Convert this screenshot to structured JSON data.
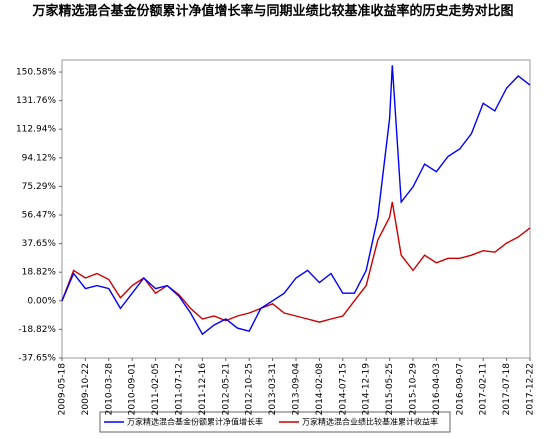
{
  "chart_data": {
    "type": "line",
    "title": "万家精选混合基金份额累计净值增长率与同期业绩比较基准收益率的历史走势对比图",
    "x": [
      "2009-05-18",
      "2009-08-04",
      "2009-10-22",
      "2010-01-08",
      "2010-03-28",
      "2010-06-14",
      "2010-09-01",
      "2010-11-18",
      "2011-02-05",
      "2011-04-24",
      "2011-07-12",
      "2011-09-28",
      "2011-12-16",
      "2012-03-03",
      "2012-05-21",
      "2012-08-07",
      "2012-10-25",
      "2013-01-11",
      "2013-03-31",
      "2013-06-17",
      "2013-09-04",
      "2013-11-21",
      "2014-02-08",
      "2014-04-27",
      "2014-07-15",
      "2014-10-01",
      "2014-12-19",
      "2015-03-07",
      "2015-05-25",
      "2015-06-12",
      "2015-08-11",
      "2015-10-29",
      "2016-01-15",
      "2016-04-03",
      "2016-06-20",
      "2016-09-07",
      "2016-11-24",
      "2017-02-11",
      "2017-04-30",
      "2017-07-18",
      "2017-10-04",
      "2017-12-22"
    ],
    "series": [
      {
        "name": "万家精选混合基金份额累计净值增长率",
        "color": "#0000ff",
        "values": [
          0,
          18,
          8,
          10,
          8,
          -5,
          5,
          15,
          8,
          10,
          3,
          -8,
          -22,
          -16,
          -12,
          -18,
          -20,
          -5,
          0,
          5,
          15,
          20,
          12,
          18,
          5,
          5,
          20,
          55,
          120,
          155,
          65,
          75,
          90,
          85,
          95,
          100,
          110,
          130,
          125,
          140,
          148,
          142
        ]
      },
      {
        "name": "万家精选混合业绩比较基准累计收益率",
        "color": "#cc0000",
        "values": [
          0,
          20,
          15,
          18,
          14,
          2,
          10,
          15,
          5,
          10,
          4,
          -5,
          -12,
          -10,
          -13,
          -10,
          -8,
          -5,
          -2,
          -8,
          -10,
          -12,
          -14,
          -12,
          -10,
          0,
          10,
          40,
          55,
          65,
          30,
          20,
          30,
          25,
          28,
          28,
          30,
          33,
          32,
          38,
          42,
          48
        ]
      }
    ],
    "xlim": [
      "2009-05-18",
      "2017-12-22"
    ],
    "xticks": [
      "2009-05-18",
      "2009-10-22",
      "2010-03-28",
      "2010-09-01",
      "2011-02-05",
      "2011-07-12",
      "2011-12-16",
      "2012-05-21",
      "2012-10-25",
      "2013-03-31",
      "2013-09-04",
      "2014-02-08",
      "2014-07-15",
      "2014-12-19",
      "2015-05-25",
      "2015-10-29",
      "2016-04-03",
      "2016-09-07",
      "2017-02-11",
      "2017-07-18",
      "2017-12-22"
    ],
    "ylim": [
      -37.65,
      158.5
    ],
    "yticks": [
      {
        "value": -37.65,
        "label": "-37.65%"
      },
      {
        "value": -18.82,
        "label": "-18.82%"
      },
      {
        "value": 0,
        "label": "0.00%"
      },
      {
        "value": 18.82,
        "label": "18.82%"
      },
      {
        "value": 37.65,
        "label": "37.65%"
      },
      {
        "value": 56.47,
        "label": "56.47%"
      },
      {
        "value": 75.29,
        "label": "75.29%"
      },
      {
        "value": 94.12,
        "label": "94.12%"
      },
      {
        "value": 112.94,
        "label": "112.94%"
      },
      {
        "value": 131.76,
        "label": "131.76%"
      },
      {
        "value": 150.58,
        "label": "150.58%"
      }
    ],
    "grid": false
  }
}
